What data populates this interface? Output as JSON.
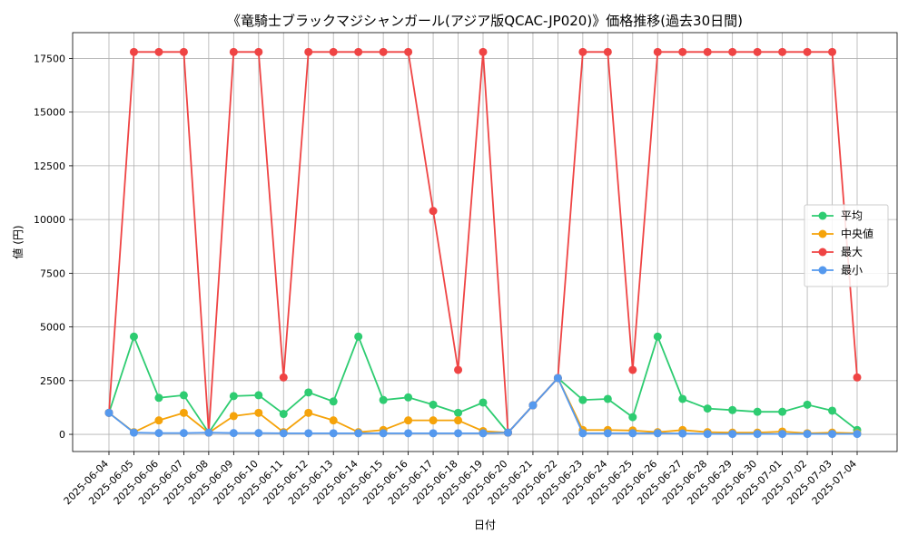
{
  "chart_data": {
    "type": "line",
    "title": "《竜騎士ブラックマジシャンガール(アジア版QCAC-JP020)》価格推移(過去30日間)",
    "xlabel": "日付",
    "ylabel": "値 (円)",
    "grid": true,
    "legend_position": "center-right",
    "ylim": [
      -800,
      18700
    ],
    "yticks": [
      0,
      2500,
      5000,
      7500,
      10000,
      12500,
      15000,
      17500
    ],
    "x": [
      "2025-06-04",
      "2025-06-05",
      "2025-06-06",
      "2025-06-07",
      "2025-06-08",
      "2025-06-09",
      "2025-06-10",
      "2025-06-11",
      "2025-06-12",
      "2025-06-13",
      "2025-06-14",
      "2025-06-15",
      "2025-06-16",
      "2025-06-17",
      "2025-06-18",
      "2025-06-19",
      "2025-06-20",
      "2025-06-21",
      "2025-06-22",
      "2025-06-23",
      "2025-06-24",
      "2025-06-25",
      "2025-06-26",
      "2025-06-27",
      "2025-06-28",
      "2025-06-29",
      "2025-06-30",
      "2025-07-01",
      "2025-07-02",
      "2025-07-03",
      "2025-07-04"
    ],
    "series": [
      {
        "name": "平均",
        "color": "#2ecc71",
        "values": [
          1000,
          4550,
          1700,
          1820,
          80,
          1780,
          1820,
          950,
          1950,
          1530,
          4550,
          1600,
          1720,
          1380,
          1000,
          1480,
          80,
          1350,
          2620,
          1600,
          1650,
          800,
          4550,
          1650,
          1200,
          1130,
          1050,
          1050,
          1380,
          1100,
          200
        ]
      },
      {
        "name": "中央値",
        "color": "#f5a30a",
        "values": [
          1000,
          100,
          650,
          1000,
          80,
          850,
          1000,
          100,
          1000,
          650,
          100,
          200,
          650,
          650,
          650,
          150,
          80,
          1350,
          2620,
          200,
          200,
          180,
          100,
          200,
          100,
          80,
          80,
          130,
          50,
          80,
          50
        ]
      },
      {
        "name": "最大",
        "color": "#ef4444",
        "values": [
          1000,
          17800,
          17800,
          17800,
          80,
          17800,
          17800,
          2650,
          17800,
          17800,
          17800,
          17800,
          17800,
          10400,
          3000,
          17800,
          80,
          1350,
          2620,
          17800,
          17800,
          3000,
          17800,
          17800,
          17800,
          17800,
          17800,
          17800,
          17800,
          17800,
          2650
        ]
      },
      {
        "name": "最小",
        "color": "#5599ee",
        "values": [
          1000,
          80,
          60,
          60,
          80,
          60,
          60,
          50,
          50,
          50,
          50,
          50,
          50,
          50,
          50,
          50,
          80,
          1350,
          2620,
          50,
          50,
          50,
          50,
          40,
          20,
          20,
          20,
          20,
          20,
          20,
          20
        ]
      }
    ]
  }
}
